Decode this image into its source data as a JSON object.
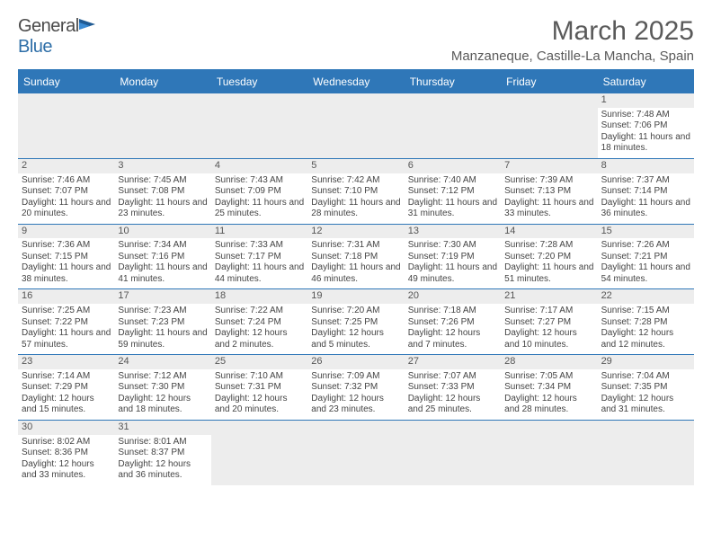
{
  "logo": {
    "textDark": "General",
    "textBlue": "Blue"
  },
  "title": "March 2025",
  "location": "Manzaneque, Castille-La Mancha, Spain",
  "colors": {
    "headerBar": "#2f77b8",
    "cellStripe": "#ededed",
    "textMuted": "#5a5a5a"
  },
  "dayNames": [
    "Sunday",
    "Monday",
    "Tuesday",
    "Wednesday",
    "Thursday",
    "Friday",
    "Saturday"
  ],
  "weeks": [
    [
      null,
      null,
      null,
      null,
      null,
      null,
      {
        "n": "1",
        "sr": "7:48 AM",
        "ss": "7:06 PM",
        "dl": "11 hours and 18 minutes."
      }
    ],
    [
      {
        "n": "2",
        "sr": "7:46 AM",
        "ss": "7:07 PM",
        "dl": "11 hours and 20 minutes."
      },
      {
        "n": "3",
        "sr": "7:45 AM",
        "ss": "7:08 PM",
        "dl": "11 hours and 23 minutes."
      },
      {
        "n": "4",
        "sr": "7:43 AM",
        "ss": "7:09 PM",
        "dl": "11 hours and 25 minutes."
      },
      {
        "n": "5",
        "sr": "7:42 AM",
        "ss": "7:10 PM",
        "dl": "11 hours and 28 minutes."
      },
      {
        "n": "6",
        "sr": "7:40 AM",
        "ss": "7:12 PM",
        "dl": "11 hours and 31 minutes."
      },
      {
        "n": "7",
        "sr": "7:39 AM",
        "ss": "7:13 PM",
        "dl": "11 hours and 33 minutes."
      },
      {
        "n": "8",
        "sr": "7:37 AM",
        "ss": "7:14 PM",
        "dl": "11 hours and 36 minutes."
      }
    ],
    [
      {
        "n": "9",
        "sr": "7:36 AM",
        "ss": "7:15 PM",
        "dl": "11 hours and 38 minutes."
      },
      {
        "n": "10",
        "sr": "7:34 AM",
        "ss": "7:16 PM",
        "dl": "11 hours and 41 minutes."
      },
      {
        "n": "11",
        "sr": "7:33 AM",
        "ss": "7:17 PM",
        "dl": "11 hours and 44 minutes."
      },
      {
        "n": "12",
        "sr": "7:31 AM",
        "ss": "7:18 PM",
        "dl": "11 hours and 46 minutes."
      },
      {
        "n": "13",
        "sr": "7:30 AM",
        "ss": "7:19 PM",
        "dl": "11 hours and 49 minutes."
      },
      {
        "n": "14",
        "sr": "7:28 AM",
        "ss": "7:20 PM",
        "dl": "11 hours and 51 minutes."
      },
      {
        "n": "15",
        "sr": "7:26 AM",
        "ss": "7:21 PM",
        "dl": "11 hours and 54 minutes."
      }
    ],
    [
      {
        "n": "16",
        "sr": "7:25 AM",
        "ss": "7:22 PM",
        "dl": "11 hours and 57 minutes."
      },
      {
        "n": "17",
        "sr": "7:23 AM",
        "ss": "7:23 PM",
        "dl": "11 hours and 59 minutes."
      },
      {
        "n": "18",
        "sr": "7:22 AM",
        "ss": "7:24 PM",
        "dl": "12 hours and 2 minutes."
      },
      {
        "n": "19",
        "sr": "7:20 AM",
        "ss": "7:25 PM",
        "dl": "12 hours and 5 minutes."
      },
      {
        "n": "20",
        "sr": "7:18 AM",
        "ss": "7:26 PM",
        "dl": "12 hours and 7 minutes."
      },
      {
        "n": "21",
        "sr": "7:17 AM",
        "ss": "7:27 PM",
        "dl": "12 hours and 10 minutes."
      },
      {
        "n": "22",
        "sr": "7:15 AM",
        "ss": "7:28 PM",
        "dl": "12 hours and 12 minutes."
      }
    ],
    [
      {
        "n": "23",
        "sr": "7:14 AM",
        "ss": "7:29 PM",
        "dl": "12 hours and 15 minutes."
      },
      {
        "n": "24",
        "sr": "7:12 AM",
        "ss": "7:30 PM",
        "dl": "12 hours and 18 minutes."
      },
      {
        "n": "25",
        "sr": "7:10 AM",
        "ss": "7:31 PM",
        "dl": "12 hours and 20 minutes."
      },
      {
        "n": "26",
        "sr": "7:09 AM",
        "ss": "7:32 PM",
        "dl": "12 hours and 23 minutes."
      },
      {
        "n": "27",
        "sr": "7:07 AM",
        "ss": "7:33 PM",
        "dl": "12 hours and 25 minutes."
      },
      {
        "n": "28",
        "sr": "7:05 AM",
        "ss": "7:34 PM",
        "dl": "12 hours and 28 minutes."
      },
      {
        "n": "29",
        "sr": "7:04 AM",
        "ss": "7:35 PM",
        "dl": "12 hours and 31 minutes."
      }
    ],
    [
      {
        "n": "30",
        "sr": "8:02 AM",
        "ss": "8:36 PM",
        "dl": "12 hours and 33 minutes."
      },
      {
        "n": "31",
        "sr": "8:01 AM",
        "ss": "8:37 PM",
        "dl": "12 hours and 36 minutes."
      },
      null,
      null,
      null,
      null,
      null
    ]
  ],
  "labels": {
    "sunrise": "Sunrise: ",
    "sunset": "Sunset: ",
    "daylight": "Daylight: "
  }
}
